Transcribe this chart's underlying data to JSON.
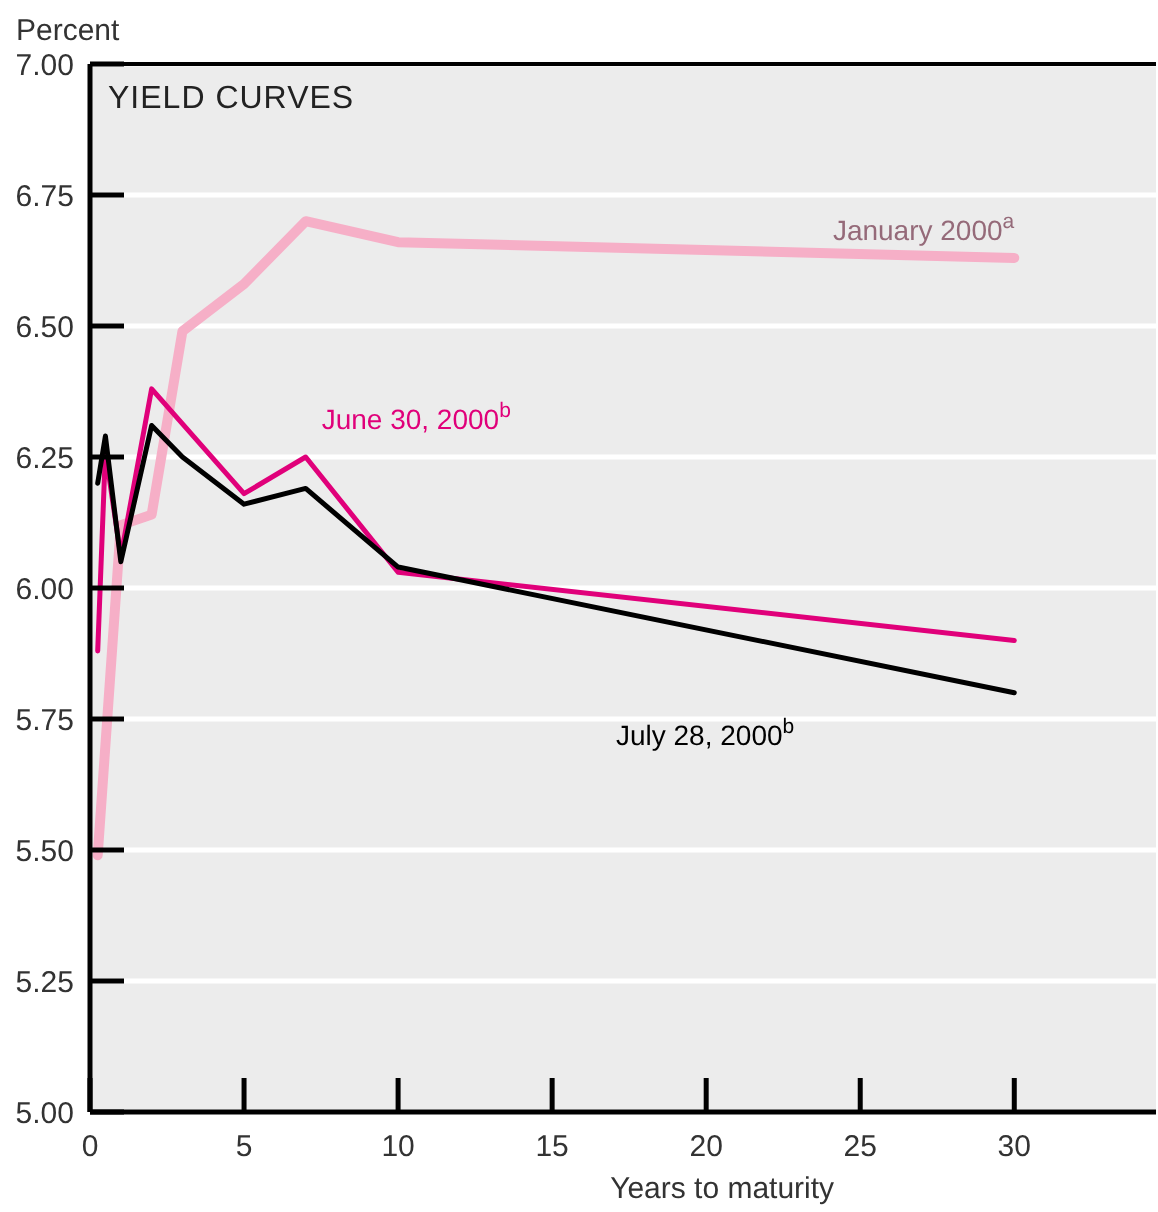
{
  "chart_data": {
    "type": "line",
    "title": "YIELD CURVES",
    "xlabel": "Years to maturity",
    "ylabel": "Percent",
    "xlim": [
      0,
      34.6
    ],
    "xticks": [
      0,
      5,
      10,
      15,
      20,
      25,
      30
    ],
    "ylim": [
      5,
      7
    ],
    "yticks": [
      {
        "value": 5,
        "label": "5.00"
      },
      {
        "value": 5.25,
        "label": "5.25"
      },
      {
        "value": 5.5,
        "label": "5.50"
      },
      {
        "value": 5.75,
        "label": "5.75"
      },
      {
        "value": 6,
        "label": "6.00"
      },
      {
        "value": 6.25,
        "label": "6.25"
      },
      {
        "value": 6.5,
        "label": "6.50"
      },
      {
        "value": 6.75,
        "label": "6.75"
      },
      {
        "value": 7,
        "label": "7.00"
      }
    ],
    "grid": "y",
    "marker": "none",
    "line_style": "solid",
    "series": [
      {
        "name": "January 2000$^{a}$",
        "color": "#f6afc7",
        "x": [
          0.25,
          1,
          2,
          3,
          5,
          7,
          10,
          30
        ],
        "values": [
          5.49,
          6.12,
          6.14,
          6.49,
          6.58,
          6.7,
          6.66,
          6.63
        ]
      },
      {
        "name": "June 30, 2000$^{b}$",
        "color": "#e0007a",
        "x": [
          0.25,
          0.5,
          1,
          2,
          5,
          7,
          10,
          30
        ],
        "values": [
          5.88,
          6.26,
          6.06,
          6.38,
          6.18,
          6.25,
          6.03,
          5.9
        ]
      },
      {
        "name": "July 28, 2000$^{b}$",
        "color": "#000000",
        "x": [
          0.25,
          0.5,
          1,
          2,
          3,
          5,
          7,
          10,
          30
        ],
        "values": [
          6.2,
          6.29,
          6.05,
          6.31,
          6.25,
          6.16,
          6.19,
          6.04,
          5.8
        ]
      }
    ]
  }
}
